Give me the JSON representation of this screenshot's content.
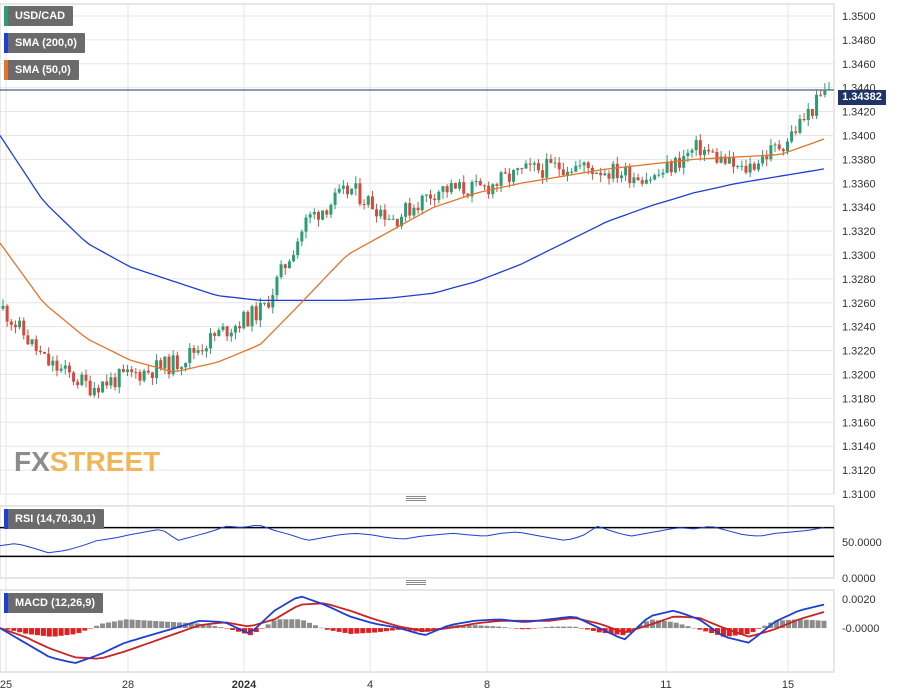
{
  "chart_data": [
    {
      "type": "line",
      "panel": "price",
      "title": "USD/CAD",
      "legend": [
        {
          "label": "USD/CAD",
          "color": "#2a9d73"
        },
        {
          "label": "SMA (200,0)",
          "color": "#1f3fd1"
        },
        {
          "label": "SMA (50,0)",
          "color": "#e2742b"
        }
      ],
      "x_tick_labels": [
        "25",
        "28",
        "2024",
        "4",
        "8",
        "11",
        "15"
      ],
      "y_tick_labels": [
        "1.3500",
        "1.3480",
        "1.3460",
        "1.3440",
        "1.3420",
        "1.3400",
        "1.3380",
        "1.3360",
        "1.3340",
        "1.3320",
        "1.3300",
        "1.3280",
        "1.3260",
        "1.3240",
        "1.3220",
        "1.3200",
        "1.3180",
        "1.3160",
        "1.3140",
        "1.3120",
        "1.3100"
      ],
      "ylim": [
        1.31,
        1.351
      ],
      "grid": true,
      "last_price_label": "1.34382",
      "last_price": 1.3438,
      "series": [
        {
          "name": "USD/CAD",
          "type": "candlestick",
          "color_up": "#2a9d73",
          "color_down": "#d64a3c",
          "x": [
            "25",
            "26",
            "27",
            "28",
            "29",
            "1",
            "2",
            "3",
            "4",
            "5",
            "7",
            "8",
            "9",
            "10",
            "11",
            "12",
            "13",
            "14",
            "15",
            "16"
          ],
          "values": [
            1.3255,
            1.321,
            1.319,
            1.32,
            1.321,
            1.3235,
            1.3255,
            1.333,
            1.3355,
            1.333,
            1.3355,
            1.3355,
            1.337,
            1.3375,
            1.337,
            1.3365,
            1.339,
            1.337,
            1.3395,
            1.344
          ]
        },
        {
          "name": "SMA (200,0)",
          "color": "#1f3fd1",
          "x": [
            "25",
            "26",
            "27",
            "28",
            "29",
            "1",
            "2",
            "3",
            "4",
            "5",
            "7",
            "8",
            "9",
            "10",
            "11",
            "12",
            "13",
            "14",
            "15",
            "16"
          ],
          "values": [
            1.34,
            1.3345,
            1.331,
            1.329,
            1.3278,
            1.3266,
            1.3262,
            1.3262,
            1.3262,
            1.3264,
            1.3268,
            1.3278,
            1.3292,
            1.331,
            1.3328,
            1.3341,
            1.3352,
            1.336,
            1.3366,
            1.3372
          ]
        },
        {
          "name": "SMA (50,0)",
          "color": "#e2742b",
          "x": [
            "25",
            "26",
            "27",
            "28",
            "29",
            "1",
            "2",
            "3",
            "4",
            "5",
            "7",
            "8",
            "9",
            "10",
            "11",
            "12",
            "13",
            "14",
            "15",
            "16"
          ],
          "values": [
            1.331,
            1.326,
            1.323,
            1.3212,
            1.3202,
            1.321,
            1.3225,
            1.3262,
            1.33,
            1.332,
            1.334,
            1.3352,
            1.336,
            1.3366,
            1.3372,
            1.3376,
            1.338,
            1.3382,
            1.3384,
            1.3397
          ]
        }
      ]
    },
    {
      "type": "line",
      "panel": "rsi",
      "title": "RSI (14,70,30,1)",
      "y_tick_labels": [
        "50.0000",
        "0.0000"
      ],
      "ylim": [
        0,
        100
      ],
      "levels": [
        70,
        30
      ],
      "series": [
        {
          "name": "RSI (14,70,30,1)",
          "color": "#1f3fd1",
          "values": [
            45,
            48,
            42,
            35,
            38,
            44,
            52,
            55,
            60,
            64,
            68,
            52,
            58,
            64,
            72,
            70,
            74,
            66,
            60,
            52,
            56,
            60,
            62,
            60,
            56,
            54,
            58,
            60,
            62,
            60,
            58,
            62,
            64,
            60,
            56,
            52,
            58,
            72,
            64,
            58,
            62,
            66,
            70,
            68,
            72,
            66,
            60,
            58,
            62,
            64,
            66,
            70
          ]
        }
      ]
    },
    {
      "type": "line",
      "panel": "macd",
      "title": "MACD (12,26,9)",
      "y_tick_labels": [
        "0.0020",
        "-0.0000"
      ],
      "ylim": [
        -0.003,
        0.0026
      ],
      "series": [
        {
          "name": "MACD",
          "color": "#1f3fd1",
          "values": [
            0.0,
            -0.001,
            -0.002,
            -0.0024,
            -0.0018,
            -0.001,
            -0.0005,
            0.0,
            0.0005,
            0.0004,
            -0.0004,
            0.0012,
            0.0022,
            0.0016,
            0.0008,
            0.0003,
            0.0,
            -0.0005,
            0.0002,
            0.0005,
            0.0006,
            0.0004,
            0.0006,
            0.0008,
            0.0,
            -0.0008,
            0.0008,
            0.0012,
            0.0006,
            -0.0006,
            -0.001,
            0.0004,
            0.0012,
            0.0016
          ]
        },
        {
          "name": "Signal",
          "color": "#cc2222",
          "values": [
            0.0,
            -0.0006,
            -0.0014,
            -0.002,
            -0.0021,
            -0.0016,
            -0.001,
            -0.0004,
            0.0002,
            0.0004,
            0.0001,
            0.0006,
            0.0016,
            0.0017,
            0.0012,
            0.0006,
            0.0001,
            -0.0002,
            0.0,
            0.0003,
            0.0005,
            0.0005,
            0.0005,
            0.0007,
            0.0003,
            -0.0003,
            0.0002,
            0.0008,
            0.0007,
            0.0,
            -0.0006,
            -0.0001,
            0.0006,
            0.0011
          ]
        },
        {
          "name": "Histogram",
          "type": "bar",
          "color_pos": "#8c8c8c",
          "color_neg": "#e02020",
          "values": [
            0.0,
            -0.0004,
            -0.0006,
            -0.0004,
            0.0003,
            0.0006,
            0.0005,
            0.0004,
            0.0003,
            0.0,
            -0.0005,
            0.0006,
            0.0006,
            -0.0001,
            -0.0004,
            -0.0003,
            -0.0001,
            -0.0003,
            0.0002,
            0.0002,
            0.0001,
            -0.0001,
            0.0001,
            0.0001,
            -0.0003,
            -0.0005,
            0.0006,
            0.0004,
            -0.0001,
            -0.0006,
            -0.0004,
            0.0005,
            0.0006,
            0.0005
          ]
        }
      ]
    }
  ],
  "legends": {
    "usdcad": "USD/CAD",
    "sma200": "SMA (200,0)",
    "sma50": "SMA (50,0)",
    "rsi": "RSI (14,70,30,1)",
    "macd": "MACD (12,26,9)"
  },
  "watermark": {
    "fx": "FX",
    "street": "STREET"
  },
  "colors": {
    "up": "#2a9d73",
    "down": "#d64a3c",
    "sma200": "#1f3fd1",
    "sma50": "#e2742b",
    "price_tag": "#1f3366"
  }
}
